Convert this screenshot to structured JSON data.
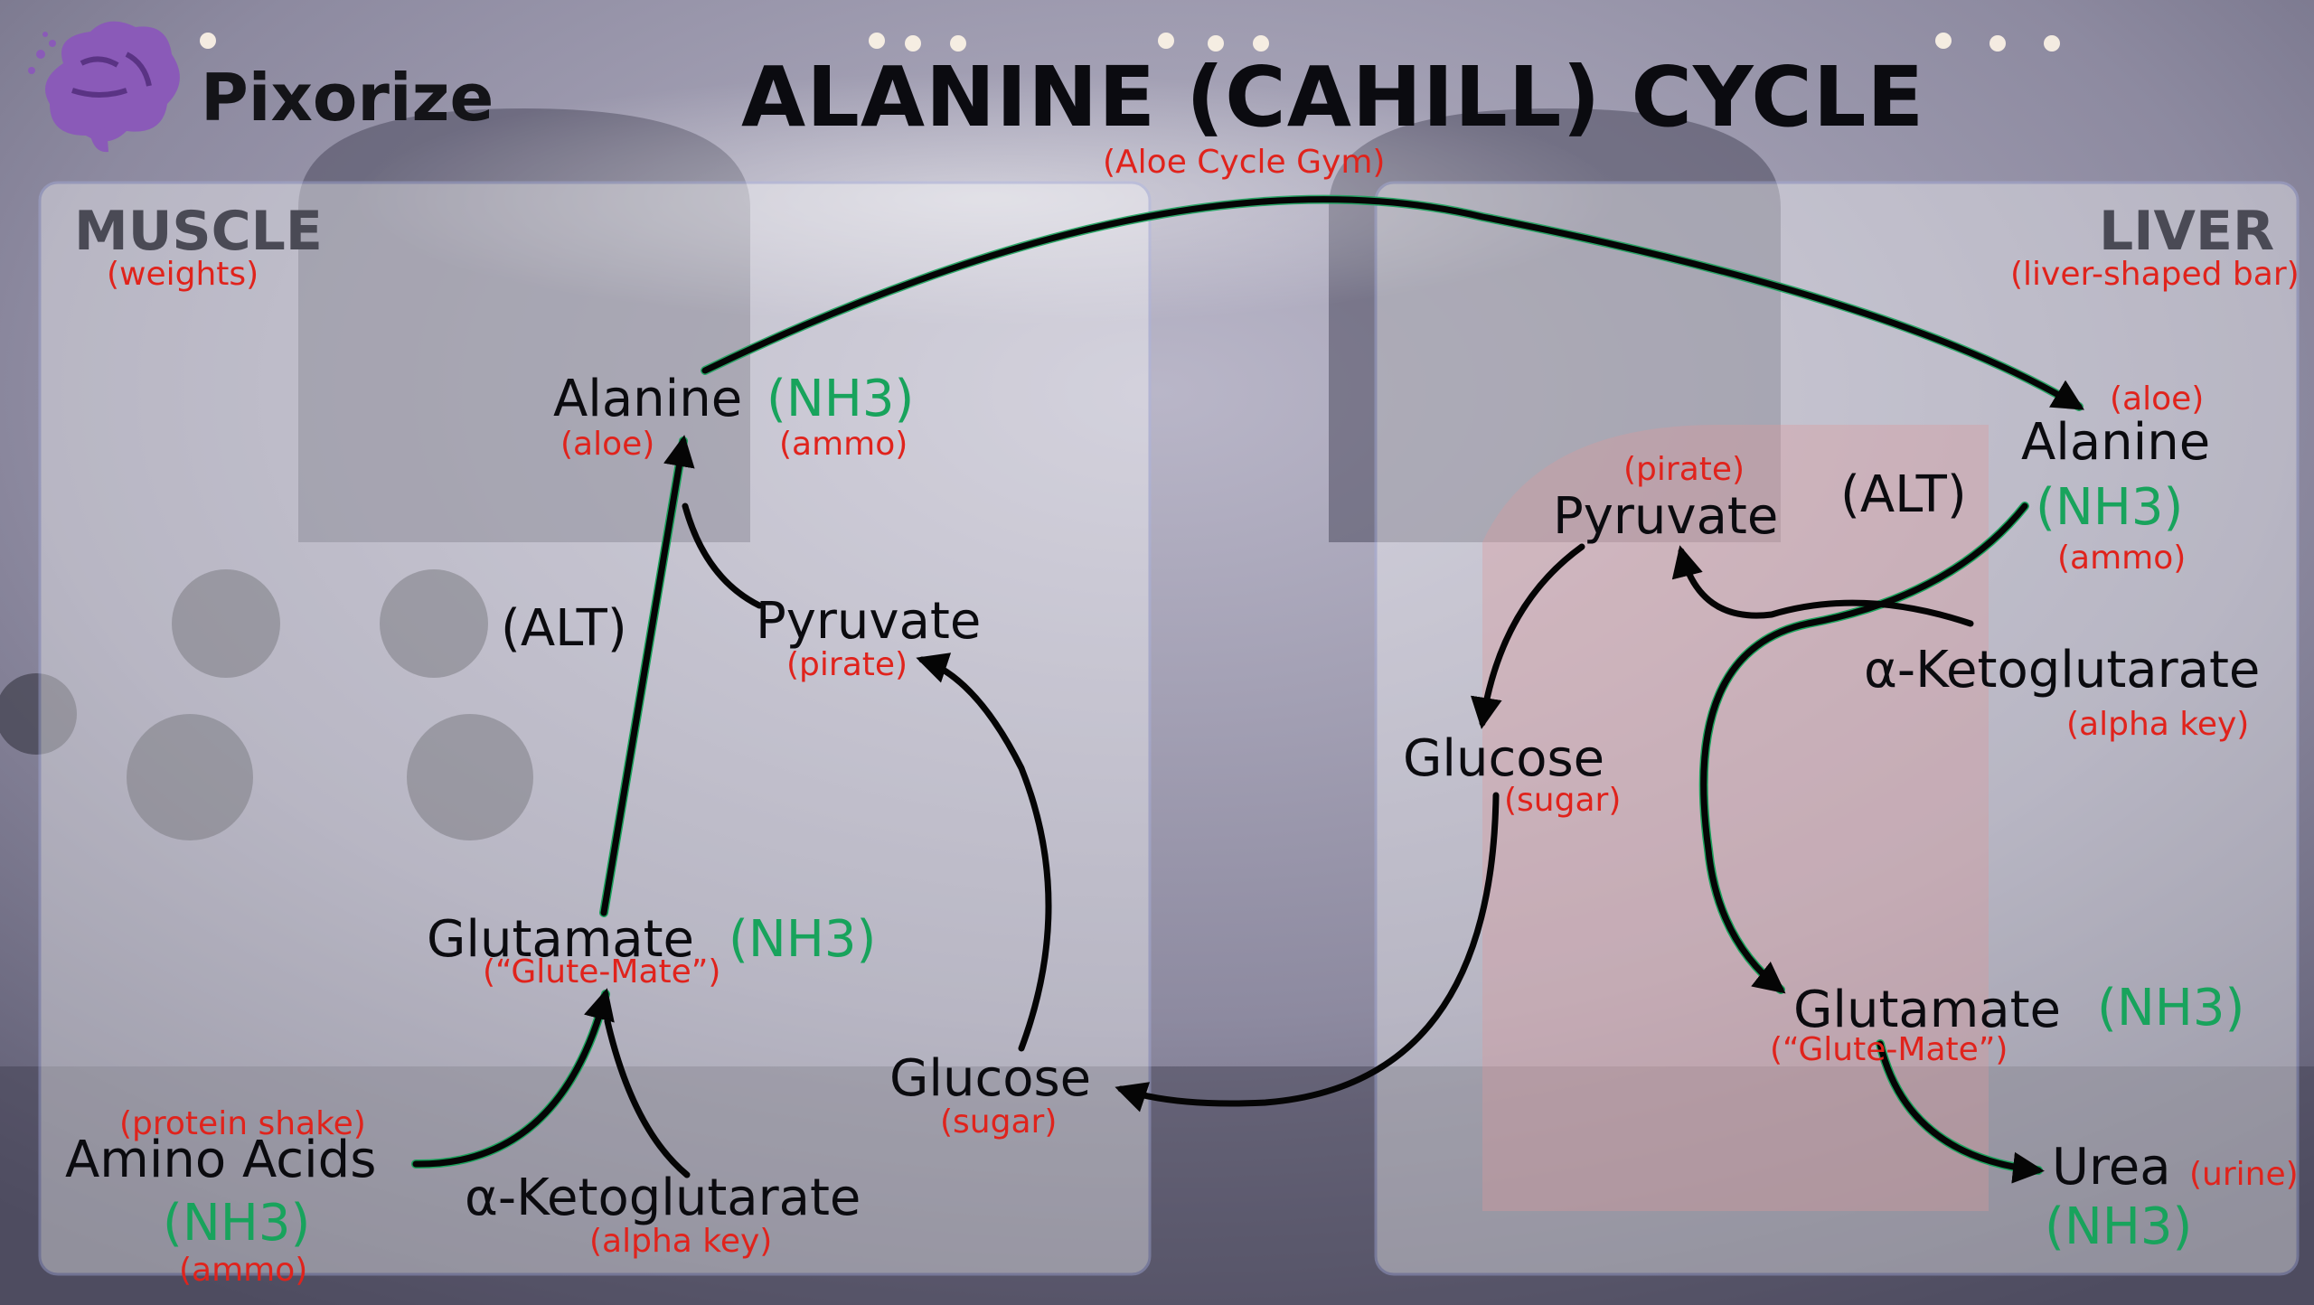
{
  "header": {
    "brand": "Pixorize",
    "title": "ALANINE (CAHILL) CYCLE",
    "subtitle": "(Aloe Cycle Gym)"
  },
  "muscle": {
    "label": "MUSCLE",
    "note": "(weights)",
    "alanine": "Alanine",
    "alanine_nh3": "(NH3)",
    "alanine_note": "(aloe)",
    "alanine_nh3_note": "(ammo)",
    "alt": "(ALT)",
    "pyruvate": "Pyruvate",
    "pyruvate_note": "(pirate)",
    "glutamate": "Glutamate",
    "glutamate_nh3": "(NH3)",
    "glutamate_note": "(“Glute-Mate”)",
    "amino_note": "(protein shake)",
    "amino": "Amino Acids",
    "amino_nh3": "(NH3)",
    "amino_nh3_note": "(ammo)",
    "akg": "α-Ketoglutarate",
    "akg_note": "(alpha key)",
    "glucose": "Glucose",
    "glucose_note": "(sugar)"
  },
  "liver": {
    "label": "LIVER",
    "note": "(liver-shaped bar)",
    "alanine_note": "(aloe)",
    "alanine": "Alanine",
    "alanine_nh3": "(NH3)",
    "alanine_nh3_note": "(ammo)",
    "pyruvate_note": "(pirate)",
    "pyruvate": "Pyruvate",
    "alt": "(ALT)",
    "akg": "α-Ketoglutarate",
    "akg_note": "(alpha key)",
    "glucose": "Glucose",
    "glucose_note": "(sugar)",
    "glutamate": "Glutamate",
    "glutamate_nh3": "(NH3)",
    "glutamate_note": "(“Glute-Mate”)",
    "urea": "Urea",
    "urea_note": "(urine)",
    "urea_nh3": "(NH3)"
  },
  "colors": {
    "arrow": "#050505",
    "green": "#18a35c",
    "note": "#e0231c",
    "panel": "#ffffff"
  },
  "icons": [
    "brain-icon",
    "dumbbell-icon",
    "exercise-bike-icon",
    "aloe-leaf-icon"
  ]
}
